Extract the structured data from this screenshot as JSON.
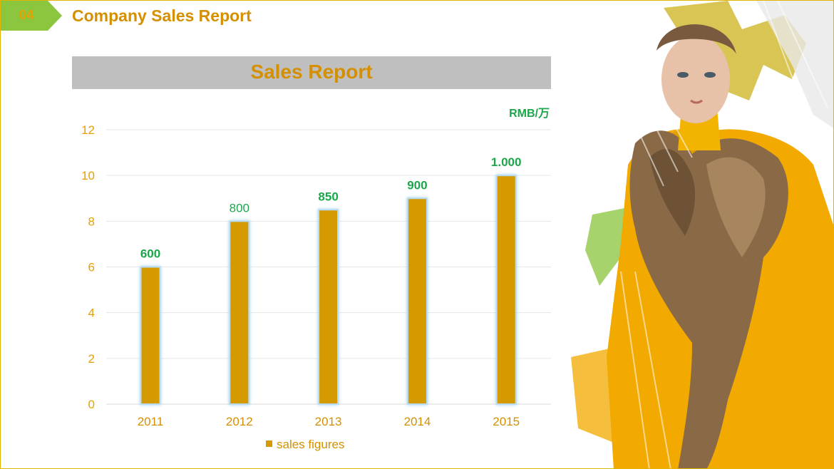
{
  "header": {
    "section_number": "04",
    "title": "Company Sales Report"
  },
  "chart_data": {
    "type": "bar",
    "title": "Sales Report",
    "unit_label": "RMB/万",
    "categories": [
      "2011",
      "2012",
      "2013",
      "2014",
      "2015"
    ],
    "series": [
      {
        "name": "sales figures",
        "values": [
          6,
          8,
          8.5,
          9,
          10
        ],
        "data_labels": [
          "600",
          "800",
          "850",
          "900",
          "1.000"
        ]
      }
    ],
    "y_ticks": [
      "0",
      "2",
      "4",
      "6",
      "8",
      "10",
      "12"
    ],
    "ylim": [
      0,
      12
    ],
    "grid": true,
    "legend_position": "bottom",
    "colors": {
      "bar": "#d49a00",
      "bar_glow": "#b9dcf2",
      "data_label": "#1aa64a",
      "tick_label": "#e8a000",
      "category_label": "#d49000",
      "gridline": "#e6e6e6"
    }
  },
  "decoration": {
    "photo_icon": "fashion-model-photo",
    "accent_colors": [
      "#f2a900",
      "#8cc63f",
      "#c6a800"
    ]
  }
}
